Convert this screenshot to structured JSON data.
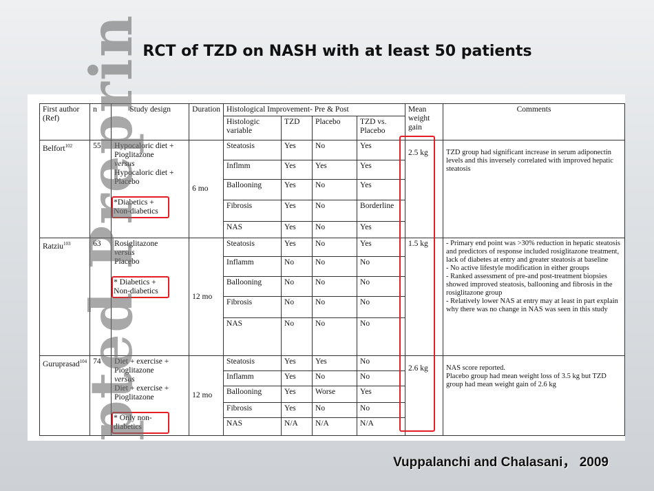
{
  "title": "RCT of TZD on NASH with at least 50 patients",
  "watermark": "pted Preprin",
  "table": {
    "header": {
      "author": "First author (Ref)",
      "n": "n",
      "design": "Study design",
      "duration": "Duration",
      "histology": "Histological Improvement- Pre & Post",
      "variable": "Histologic variable",
      "tzd": "TZD",
      "placebo": "Placebo",
      "versus": "TZD vs. Placebo",
      "weight": "Mean weight gain",
      "comments": "Comments"
    },
    "studies": [
      {
        "author": "Belfort",
        "ref": "102",
        "n": "55",
        "design": [
          "Hypocaloric diet + Pioglitazone",
          "versus",
          "Hypocaloric diet + Placebo"
        ],
        "population": "*Diabetics + Non-diabetics",
        "duration": "6 mo",
        "rows": [
          [
            "Steatosis",
            "Yes",
            "No",
            "Yes"
          ],
          [
            "Inflmm",
            "Yes",
            "Yes",
            "Yes"
          ],
          [
            "Ballooning",
            "Yes",
            "No",
            "Yes"
          ],
          [
            "Fibrosis",
            "Yes",
            "No",
            "Borderline"
          ],
          [
            "NAS",
            "Yes",
            "No",
            "Yes"
          ]
        ],
        "weight": "2.5 kg",
        "comments": [
          "TZD group had significant increase in serum adiponectin levels and this inversely correlated with improved hepatic steatosis"
        ]
      },
      {
        "author": "Ratziu",
        "ref": "103",
        "n": "63",
        "design": [
          "Rosiglitazone",
          "versus",
          "Placebo"
        ],
        "population": "* Diabetics + Non-diabetics",
        "duration": "12 mo",
        "rows": [
          [
            "Steatosis",
            "Yes",
            "No",
            "Yes"
          ],
          [
            "Inflamm",
            "No",
            "No",
            "No"
          ],
          [
            "Ballooning",
            "No",
            "No",
            "No"
          ],
          [
            "Fibrosis",
            "No",
            "No",
            "No"
          ],
          [
            "NAS",
            "No",
            "No",
            "No"
          ]
        ],
        "weight": "1.5 kg",
        "comments": [
          "- Primary end point was >30% reduction in hepatic steatosis and predictors of response included rosiglitazone treatment, lack of diabetes at entry and greater steatosis at baseline",
          "- No active lifestyle modification in either groups",
          "- Ranked assessment of pre-and post-treatment biopsies showed improved steatosis, ballooning and fibrosis in the rosiglitazone group",
          "- Relatively lower NAS at entry may at least in part explain why there was no change in NAS was seen in this study"
        ]
      },
      {
        "author": "Guruprasad",
        "ref": "104",
        "n": "74",
        "design": [
          "Diet + exercise + Pioglitazone",
          "versus",
          "Diet + exercise + Pioglitazone"
        ],
        "population": "* Only non-diabetics",
        "duration": "12 mo",
        "rows": [
          [
            "Steatosis",
            "Yes",
            "Yes",
            "No"
          ],
          [
            "Inflamm",
            "Yes",
            "No",
            "No"
          ],
          [
            "Ballooning",
            "Yes",
            "Worse",
            "Yes"
          ],
          [
            "Fibrosis",
            "Yes",
            "No",
            "No"
          ],
          [
            "NAS",
            "N/A",
            "N/A",
            "N/A"
          ]
        ],
        "weight": "2.6 kg",
        "comments": [
          "NAS score reported.",
          "Placebo group had mean weight loss of 3.5 kg but TZD group had mean weight gain of 2.6 kg"
        ]
      }
    ]
  },
  "credit": "Vuppalanchi and Chalasani， 2009"
}
